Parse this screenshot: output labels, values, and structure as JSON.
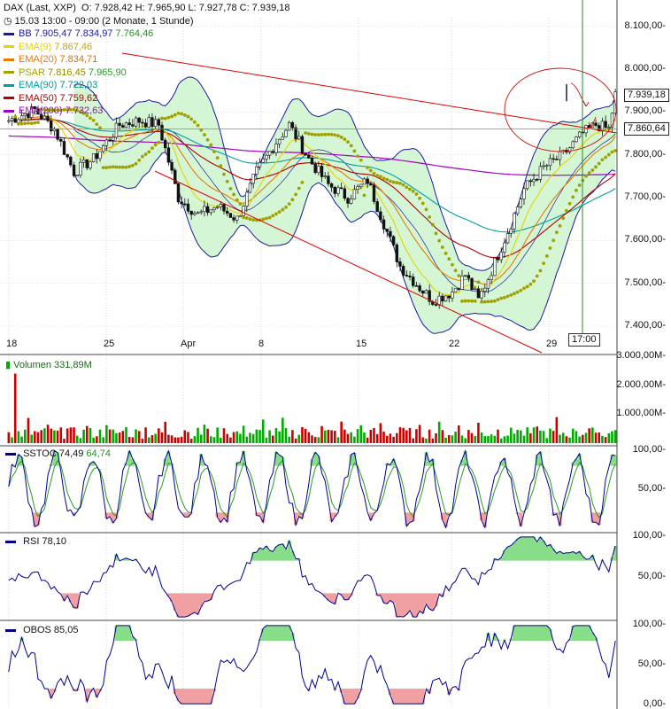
{
  "header": {
    "instrument": "DAX (Last, XXP)",
    "ohlc": "O: 7.928,42  H: 7.965,90  L: 7.927,78  C: 7.939,18",
    "period": "15.03 13:00 - 09:00 (2 Monate, 1 Stunde)"
  },
  "legend": [
    {
      "name": "BB",
      "values": [
        "7.905,47",
        "7.834,97",
        "7.764,46"
      ],
      "color": "#1a1aa0",
      "value_colors": [
        "#1a1aa0",
        "#1a1aa0",
        "#2a8a2a"
      ]
    },
    {
      "name": "EMA(9)",
      "values": [
        "7.867,46"
      ],
      "color": "#e8d200",
      "value_colors": [
        "#c9a800"
      ]
    },
    {
      "name": "EMA(20)",
      "values": [
        "7.834,71"
      ],
      "color": "#e87a00",
      "value_colors": [
        "#e06a00"
      ]
    },
    {
      "name": "PSAR",
      "values": [
        "7.816,45",
        "7.965,90"
      ],
      "color": "#a0a000",
      "value_colors": [
        "#8a8a00",
        "#2a9a2a"
      ]
    },
    {
      "name": "EMA(90)",
      "values": [
        "7.722,03"
      ],
      "color": "#00a0a0",
      "value_colors": [
        "#008a8a"
      ]
    },
    {
      "name": "EMA(50)",
      "values": [
        "7.759,62"
      ],
      "color": "#b00000",
      "value_colors": [
        "#b00000"
      ]
    },
    {
      "name": "EMA(200)",
      "values": [
        "7.732,63"
      ],
      "color": "#a000c0",
      "value_colors": [
        "#a000c0"
      ]
    }
  ],
  "price_labels": [
    {
      "text": "7.939,18",
      "value": 7939.18
    },
    {
      "text": "7.860,64",
      "value": 7860.64
    }
  ],
  "time_label": "17:00",
  "colors": {
    "up": "#00aa00",
    "down": "#cc0000",
    "bb": "#1a1aa0",
    "bb_fill": "#ccf5cc",
    "trend": "#e00000",
    "ob_fill": "#88dd88",
    "os_fill": "#f0a0a0",
    "ind_line": "#00008b",
    "sig_line": "#2a9a2a",
    "vline": "#2a8a2a"
  },
  "chart_data": [
    {
      "type": "line",
      "title": "DAX (Last, XXP)",
      "x_ticks": [
        "18",
        "25",
        "Apr",
        "8",
        "15",
        "22",
        "29"
      ],
      "y_ticks": [
        "7.400,00",
        "7.500,00",
        "7.600,00",
        "7.700,00",
        "7.800,00",
        "7.900,00",
        "8.000,00",
        "8.100,00"
      ],
      "ylim": [
        7340,
        8120
      ],
      "series_names": [
        "BB",
        "EMA(9)",
        "EMA(20)",
        "PSAR",
        "EMA(90)",
        "EMA(50)",
        "EMA(200)"
      ],
      "close_anchors": [
        [
          0,
          7880
        ],
        [
          8,
          7905
        ],
        [
          14,
          7860
        ],
        [
          20,
          7760
        ],
        [
          26,
          7790
        ],
        [
          34,
          7870
        ],
        [
          40,
          7880
        ],
        [
          46,
          7870
        ],
        [
          52,
          7700
        ],
        [
          58,
          7660
        ],
        [
          64,
          7680
        ],
        [
          70,
          7650
        ],
        [
          76,
          7760
        ],
        [
          82,
          7830
        ],
        [
          86,
          7870
        ],
        [
          92,
          7790
        ],
        [
          98,
          7730
        ],
        [
          104,
          7700
        ],
        [
          110,
          7740
        ],
        [
          114,
          7660
        ],
        [
          120,
          7540
        ],
        [
          126,
          7490
        ],
        [
          130,
          7460
        ],
        [
          136,
          7480
        ],
        [
          140,
          7520
        ],
        [
          144,
          7460
        ],
        [
          148,
          7530
        ],
        [
          154,
          7640
        ],
        [
          158,
          7720
        ],
        [
          164,
          7770
        ],
        [
          170,
          7800
        ],
        [
          176,
          7850
        ],
        [
          180,
          7870
        ],
        [
          184,
          7860
        ],
        [
          186,
          7940
        ]
      ],
      "annotations": [
        "descending channel trendlines",
        "red circle with downward arrows at upper-right"
      ]
    },
    {
      "type": "bar",
      "title": "Volumen",
      "value_label": "331,89M",
      "y_ticks": [
        "1.000,00M",
        "2.000,00M",
        "3.000,00M"
      ],
      "ylim": [
        0,
        3000
      ]
    },
    {
      "type": "line",
      "title": "SSTOC",
      "values_shown": [
        "74,49",
        "64,74"
      ],
      "y_ticks": [
        "50,00",
        "100,00"
      ],
      "ylim": [
        0,
        100
      ]
    },
    {
      "type": "line",
      "title": "RSI",
      "values_shown": [
        "78,10"
      ],
      "y_ticks": [
        "50,00",
        "100,00"
      ],
      "ylim": [
        0,
        100
      ]
    },
    {
      "type": "line",
      "title": "OBOS",
      "values_shown": [
        "85,05"
      ],
      "y_ticks": [
        "0,00",
        "50,00",
        "100,00"
      ],
      "ylim": [
        0,
        100
      ]
    }
  ]
}
